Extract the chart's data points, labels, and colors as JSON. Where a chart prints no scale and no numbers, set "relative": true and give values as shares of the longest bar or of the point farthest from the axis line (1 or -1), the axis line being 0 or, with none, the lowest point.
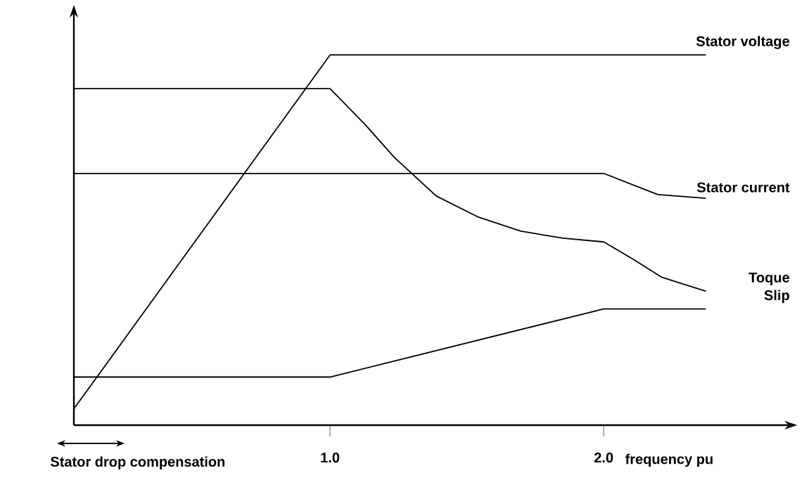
{
  "chart_data": {
    "type": "line",
    "relative": true,
    "xlabel": "frequency pu",
    "xlim": [
      0.064,
      2.686
    ],
    "xticks": [
      {
        "value": 1.0,
        "label": "1.0"
      },
      {
        "value": 2.0,
        "label": "2.0"
      }
    ],
    "series": [
      {
        "name": "Stator voltage",
        "color": "#000000",
        "x": [
          0.064,
          1.0,
          2.373
        ],
        "values": [
          0.044,
          1.0,
          1.0
        ]
      },
      {
        "name": "Stator current",
        "color": "#000000",
        "x": [
          0.064,
          2.0,
          2.198,
          2.373
        ],
        "values": [
          0.68,
          0.68,
          0.623,
          0.613
        ]
      },
      {
        "name": "Toque",
        "color": "#000000",
        "x": [
          0.064,
          1.0,
          1.131,
          1.234,
          1.388,
          1.542,
          1.697,
          1.851,
          2.0,
          2.108,
          2.211,
          2.373
        ],
        "values": [
          0.909,
          0.909,
          0.81,
          0.724,
          0.619,
          0.562,
          0.524,
          0.505,
          0.495,
          0.448,
          0.4,
          0.362
        ]
      },
      {
        "name": "Slip",
        "color": "#000000",
        "x": [
          0.064,
          1.0,
          2.0,
          2.373
        ],
        "values": [
          0.13,
          0.13,
          0.314,
          0.314
        ]
      }
    ],
    "annotations": [
      "Stator drop compensation"
    ],
    "grid": false,
    "legend": false,
    "marker": "none",
    "line_style": "solid"
  }
}
